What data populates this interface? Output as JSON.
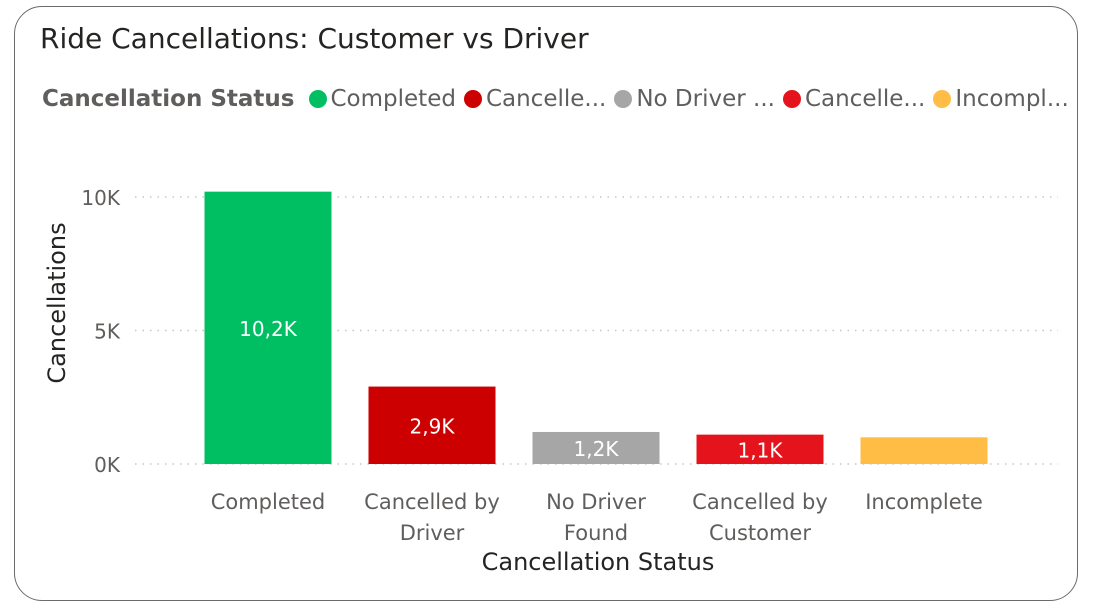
{
  "title": "Ride Cancellations: Customer vs Driver",
  "legend": {
    "title": "Cancellation Status",
    "items": [
      {
        "label": "Completed",
        "color": "#00bf63"
      },
      {
        "label": "Cancelle...",
        "color": "#cc0000"
      },
      {
        "label": "No Driver ...",
        "color": "#a6a6a6"
      },
      {
        "label": "Cancelle...",
        "color": "#e5141c"
      },
      {
        "label": "Incompl...",
        "color": "#ffbd45"
      }
    ]
  },
  "chart_data": {
    "type": "bar",
    "categories": [
      [
        "Completed"
      ],
      [
        "Cancelled by",
        "Driver"
      ],
      [
        "No Driver",
        "Found"
      ],
      [
        "Cancelled by",
        "Customer"
      ],
      [
        "Incomplete"
      ]
    ],
    "values": [
      10200,
      2900,
      1200,
      1100,
      1000
    ],
    "data_labels": [
      "10,2K",
      "2,9K",
      "1,2K",
      "1,1K",
      ""
    ],
    "colors": [
      "#00bf63",
      "#cc0000",
      "#a6a6a6",
      "#e5141c",
      "#ffbd45"
    ],
    "xlabel": "Cancellation Status",
    "ylabel": "Cancellations",
    "ylim": [
      0,
      10000
    ],
    "yticks": [
      {
        "value": 0,
        "label": "0K"
      },
      {
        "value": 5000,
        "label": "5K"
      },
      {
        "value": 10000,
        "label": "10K"
      }
    ],
    "grid": true
  }
}
